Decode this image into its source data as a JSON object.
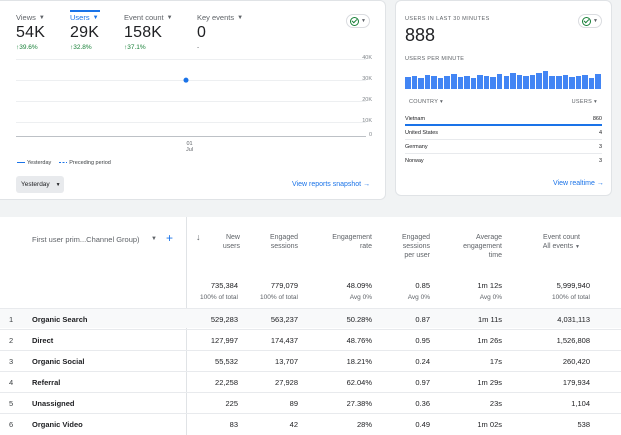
{
  "overview": {
    "metrics": [
      {
        "label": "Views",
        "value": "54K",
        "change": "39.6%",
        "active": false
      },
      {
        "label": "Users",
        "value": "29K",
        "change": "32.8%",
        "active": true
      },
      {
        "label": "Event count",
        "value": "158K",
        "change": "37.1%",
        "active": false
      },
      {
        "label": "Key events",
        "value": "0",
        "change": "-",
        "active": false
      }
    ],
    "y_ticks": [
      "40K",
      "30K",
      "20K",
      "10K",
      "0"
    ],
    "x_tick_day": "01",
    "x_tick_month": "Jul",
    "legend": {
      "current": "Yesterday",
      "previous": "Preceding period"
    },
    "date_range": "Yesterday",
    "view_link": "View reports snapshot"
  },
  "chart_data": {
    "type": "line",
    "title": "",
    "series": [
      {
        "name": "Yesterday",
        "x": [
          "01 Jul"
        ],
        "values": [
          29000
        ]
      }
    ],
    "ylim": [
      0,
      40000
    ],
    "y_ticks": [
      "40K",
      "30K",
      "20K",
      "10K",
      "0"
    ]
  },
  "realtime": {
    "title": "USERS IN LAST 30 MINUTES",
    "count": "888",
    "per_minute_label": "USERS PER MINUTE",
    "per_minute": [
      0.55,
      0.6,
      0.5,
      0.65,
      0.58,
      0.52,
      0.6,
      0.7,
      0.55,
      0.6,
      0.5,
      0.62,
      0.58,
      0.55,
      0.68,
      0.6,
      0.72,
      0.62,
      0.58,
      0.65,
      0.75,
      0.8,
      0.6,
      0.58,
      0.62,
      0.56,
      0.6,
      0.64,
      0.5,
      0.7
    ],
    "col_country": "COUNTRY",
    "col_users": "USERS",
    "rows": [
      {
        "country": "Vietnam",
        "users": "860",
        "share": 1.0
      },
      {
        "country": "United States",
        "users": "4",
        "share": 0.0
      },
      {
        "country": "Germany",
        "users": "3",
        "share": 0.0
      },
      {
        "country": "Norway",
        "users": "3",
        "share": 0.0
      }
    ],
    "view_link": "View realtime"
  },
  "table": {
    "dimension": "First user prim...Channel Group)",
    "columns": [
      {
        "line1": "New",
        "line2": "users"
      },
      {
        "line1": "Engaged",
        "line2": "sessions"
      },
      {
        "line1": "Engagement",
        "line2": "rate"
      },
      {
        "line1": "Engaged",
        "line2": "sessions",
        "line3": "per user"
      },
      {
        "line1": "Average",
        "line2": "engagement",
        "line3": "time"
      },
      {
        "line1": "Event count",
        "line2": "All events"
      }
    ],
    "totals": [
      "735,384",
      "779,079",
      "48.09%",
      "0.85",
      "1m 12s",
      "5,999,940"
    ],
    "totals_sub": [
      "100% of total",
      "100% of total",
      "Avg 0%",
      "Avg 0%",
      "Avg 0%",
      "100% of total"
    ],
    "rows": [
      {
        "idx": "1",
        "name": "Organic Search",
        "vals": [
          "529,283",
          "563,237",
          "50.28%",
          "0.87",
          "1m 11s",
          "4,031,113"
        ]
      },
      {
        "idx": "2",
        "name": "Direct",
        "vals": [
          "127,997",
          "174,437",
          "48.76%",
          "0.95",
          "1m 26s",
          "1,526,808"
        ]
      },
      {
        "idx": "3",
        "name": "Organic Social",
        "vals": [
          "55,532",
          "13,707",
          "18.21%",
          "0.24",
          "17s",
          "260,420"
        ]
      },
      {
        "idx": "4",
        "name": "Referral",
        "vals": [
          "22,258",
          "27,928",
          "62.04%",
          "0.97",
          "1m 29s",
          "179,934"
        ]
      },
      {
        "idx": "5",
        "name": "Unassigned",
        "vals": [
          "225",
          "89",
          "27.38%",
          "0.36",
          "23s",
          "1,104"
        ]
      },
      {
        "idx": "6",
        "name": "Organic Video",
        "vals": [
          "83",
          "42",
          "28%",
          "0.49",
          "1m 02s",
          "538"
        ]
      }
    ]
  }
}
